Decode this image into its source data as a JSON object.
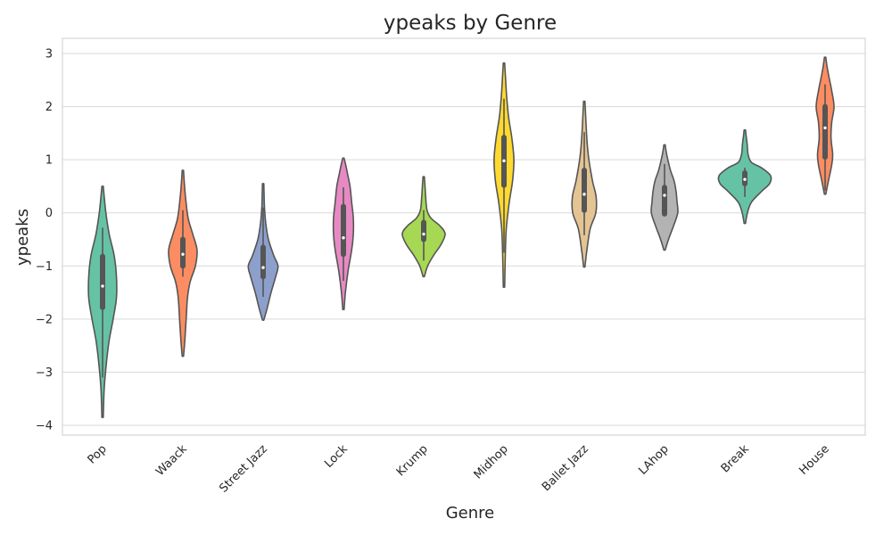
{
  "chart_data": {
    "type": "violin",
    "title": "ypeaks by Genre",
    "xlabel": "Genre",
    "ylabel": "ypeaks",
    "ylim": [
      -4.2,
      3.3
    ],
    "yticks": [
      3,
      2,
      1,
      0,
      -1,
      -2,
      -3,
      -4
    ],
    "ytick_labels": [
      "3",
      "2",
      "1",
      "0",
      "−1",
      "−2",
      "−3",
      "−4"
    ],
    "grid": true,
    "categories": [
      "Pop",
      "Waack",
      "Street Jazz",
      "Lock",
      "Krump",
      "Midhop",
      "Ballet Jazz",
      "LAhop",
      "Break",
      "House"
    ],
    "colors": [
      "#66c2a5",
      "#fc8d62",
      "#8da0cb",
      "#e78ac3",
      "#a6d854",
      "#ffd92f",
      "#e5c494",
      "#b3b3b3",
      "#66c2a5",
      "#fc8d62"
    ],
    "violins": [
      {
        "genre": "Pop",
        "min": -3.85,
        "max": 0.5,
        "q1": -1.78,
        "median": -1.38,
        "q3": -0.82,
        "whisker_low": -3.1,
        "whisker_high": -0.28,
        "profile": [
          [
            -3.85,
            0.02
          ],
          [
            -3.3,
            0.05
          ],
          [
            -2.8,
            0.12
          ],
          [
            -2.4,
            0.2
          ],
          [
            -2.0,
            0.32
          ],
          [
            -1.6,
            0.42
          ],
          [
            -1.2,
            0.42
          ],
          [
            -0.8,
            0.35
          ],
          [
            -0.4,
            0.2
          ],
          [
            0.0,
            0.1
          ],
          [
            0.3,
            0.05
          ],
          [
            0.5,
            0.02
          ]
        ]
      },
      {
        "genre": "Waack",
        "min": -2.7,
        "max": 0.8,
        "q1": -1.0,
        "median": -0.78,
        "q3": -0.5,
        "whisker_low": -1.2,
        "whisker_high": 0.05,
        "profile": [
          [
            -2.7,
            0.02
          ],
          [
            -2.4,
            0.06
          ],
          [
            -2.0,
            0.1
          ],
          [
            -1.6,
            0.14
          ],
          [
            -1.3,
            0.22
          ],
          [
            -1.0,
            0.38
          ],
          [
            -0.7,
            0.43
          ],
          [
            -0.4,
            0.3
          ],
          [
            -0.1,
            0.16
          ],
          [
            0.3,
            0.08
          ],
          [
            0.6,
            0.04
          ],
          [
            0.8,
            0.02
          ]
        ]
      },
      {
        "genre": "Street Jazz",
        "min": -2.02,
        "max": 0.55,
        "q1": -1.2,
        "median": -1.03,
        "q3": -0.65,
        "whisker_low": -1.58,
        "whisker_high": 0.1,
        "profile": [
          [
            -2.02,
            0.02
          ],
          [
            -1.8,
            0.12
          ],
          [
            -1.5,
            0.24
          ],
          [
            -1.2,
            0.38
          ],
          [
            -1.0,
            0.45
          ],
          [
            -0.8,
            0.32
          ],
          [
            -0.5,
            0.16
          ],
          [
            -0.2,
            0.08
          ],
          [
            0.1,
            0.04
          ],
          [
            0.3,
            0.03
          ],
          [
            0.55,
            0.02
          ]
        ]
      },
      {
        "genre": "Lock",
        "min": -1.82,
        "max": 1.03,
        "q1": -0.78,
        "median": -0.47,
        "q3": 0.12,
        "whisker_low": -1.28,
        "whisker_high": 0.48,
        "profile": [
          [
            -1.82,
            0.02
          ],
          [
            -1.5,
            0.06
          ],
          [
            -1.1,
            0.14
          ],
          [
            -0.7,
            0.25
          ],
          [
            -0.4,
            0.3
          ],
          [
            -0.1,
            0.3
          ],
          [
            0.2,
            0.25
          ],
          [
            0.5,
            0.2
          ],
          [
            0.75,
            0.12
          ],
          [
            0.9,
            0.07
          ],
          [
            1.03,
            0.02
          ]
        ]
      },
      {
        "genre": "Krump",
        "min": -1.2,
        "max": 0.68,
        "q1": -0.5,
        "median": -0.4,
        "q3": -0.18,
        "whisker_low": -0.9,
        "whisker_high": 0.05,
        "profile": [
          [
            -1.2,
            0.02
          ],
          [
            -1.0,
            0.12
          ],
          [
            -0.8,
            0.3
          ],
          [
            -0.6,
            0.52
          ],
          [
            -0.4,
            0.65
          ],
          [
            -0.25,
            0.5
          ],
          [
            -0.1,
            0.22
          ],
          [
            0.05,
            0.1
          ],
          [
            0.3,
            0.06
          ],
          [
            0.5,
            0.04
          ],
          [
            0.68,
            0.02
          ]
        ]
      },
      {
        "genre": "Midhop",
        "min": -1.4,
        "max": 2.82,
        "q1": 0.52,
        "median": 0.98,
        "q3": 1.42,
        "whisker_low": -0.75,
        "whisker_high": 2.15,
        "profile": [
          [
            -1.4,
            0.02
          ],
          [
            -0.8,
            0.04
          ],
          [
            -0.3,
            0.07
          ],
          [
            0.2,
            0.16
          ],
          [
            0.6,
            0.26
          ],
          [
            1.0,
            0.3
          ],
          [
            1.4,
            0.24
          ],
          [
            1.8,
            0.14
          ],
          [
            2.2,
            0.08
          ],
          [
            2.5,
            0.05
          ],
          [
            2.82,
            0.02
          ]
        ]
      },
      {
        "genre": "Ballet Jazz",
        "min": -1.02,
        "max": 2.1,
        "q1": 0.05,
        "median": 0.35,
        "q3": 0.8,
        "whisker_low": -0.42,
        "whisker_high": 1.52,
        "profile": [
          [
            -1.02,
            0.02
          ],
          [
            -0.7,
            0.08
          ],
          [
            -0.3,
            0.18
          ],
          [
            0.0,
            0.35
          ],
          [
            0.3,
            0.36
          ],
          [
            0.6,
            0.25
          ],
          [
            1.0,
            0.14
          ],
          [
            1.3,
            0.09
          ],
          [
            1.6,
            0.06
          ],
          [
            1.85,
            0.04
          ],
          [
            2.1,
            0.02
          ]
        ]
      },
      {
        "genre": "LAhop",
        "min": -0.7,
        "max": 1.28,
        "q1": -0.02,
        "median": 0.33,
        "q3": 0.48,
        "whisker_low": -0.02,
        "whisker_high": 0.92,
        "profile": [
          [
            -0.7,
            0.02
          ],
          [
            -0.5,
            0.12
          ],
          [
            -0.25,
            0.27
          ],
          [
            0.0,
            0.4
          ],
          [
            0.2,
            0.38
          ],
          [
            0.4,
            0.35
          ],
          [
            0.6,
            0.29
          ],
          [
            0.8,
            0.18
          ],
          [
            1.0,
            0.1
          ],
          [
            1.15,
            0.05
          ],
          [
            1.28,
            0.02
          ]
        ]
      },
      {
        "genre": "Break",
        "min": -0.2,
        "max": 1.56,
        "q1": 0.55,
        "median": 0.63,
        "q3": 0.75,
        "whisker_low": 0.3,
        "whisker_high": 0.85,
        "profile": [
          [
            -0.2,
            0.02
          ],
          [
            0.0,
            0.08
          ],
          [
            0.2,
            0.2
          ],
          [
            0.4,
            0.5
          ],
          [
            0.55,
            0.75
          ],
          [
            0.7,
            0.78
          ],
          [
            0.85,
            0.5
          ],
          [
            0.95,
            0.2
          ],
          [
            1.1,
            0.1
          ],
          [
            1.3,
            0.07
          ],
          [
            1.45,
            0.04
          ],
          [
            1.56,
            0.02
          ]
        ]
      },
      {
        "genre": "House",
        "min": 0.35,
        "max": 2.93,
        "q1": 1.05,
        "median": 1.6,
        "q3": 2.0,
        "whisker_low": 0.42,
        "whisker_high": 2.42,
        "profile": [
          [
            0.35,
            0.02
          ],
          [
            0.6,
            0.1
          ],
          [
            0.9,
            0.2
          ],
          [
            1.1,
            0.23
          ],
          [
            1.4,
            0.18
          ],
          [
            1.7,
            0.2
          ],
          [
            2.0,
            0.27
          ],
          [
            2.3,
            0.2
          ],
          [
            2.55,
            0.12
          ],
          [
            2.75,
            0.06
          ],
          [
            2.93,
            0.02
          ]
        ]
      }
    ]
  }
}
